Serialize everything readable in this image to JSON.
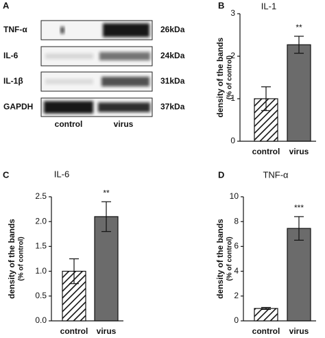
{
  "blot": {
    "panel": "A",
    "rows": [
      {
        "label": "TNF-α",
        "size": "26kDa"
      },
      {
        "label": "IL-6",
        "size": "24kDa"
      },
      {
        "label": "IL-1β",
        "size": "31kDa"
      },
      {
        "label": "GAPDH",
        "size": "37kDa"
      }
    ],
    "lanes": [
      "control",
      "virus"
    ]
  },
  "chart_data": [
    {
      "type": "bar",
      "panel": "B",
      "title": "IL-1",
      "ylabel": [
        "density of the bands",
        "(% of control)"
      ],
      "categories": [
        "control",
        "virus"
      ],
      "values": [
        1.0,
        2.27
      ],
      "errors": [
        0.28,
        0.2
      ],
      "annotations": [
        null,
        "**"
      ],
      "patterns": [
        "hatch",
        "solid"
      ],
      "color": "#6b6b6b",
      "ylim": [
        0,
        3
      ],
      "yticks": [
        0,
        1,
        2,
        3
      ]
    },
    {
      "type": "bar",
      "panel": "C",
      "title": "IL-6",
      "ylabel": [
        "density of the bands",
        "(% of control)"
      ],
      "categories": [
        "control",
        "virus"
      ],
      "values": [
        1.0,
        2.1
      ],
      "errors": [
        0.25,
        0.3
      ],
      "annotations": [
        null,
        "**"
      ],
      "patterns": [
        "hatch",
        "solid"
      ],
      "color": "#6b6b6b",
      "ylim": [
        0,
        2.5
      ],
      "yticks": [
        {
          "value": 0,
          "label": "0.0"
        },
        0.5,
        {
          "value": 1,
          "label": "1.0"
        },
        1.5,
        {
          "value": 2,
          "label": "2.0"
        },
        2.5
      ]
    },
    {
      "type": "bar",
      "panel": "D",
      "title": "TNF-α",
      "ylabel": [
        "density of the bands",
        "(% of control)"
      ],
      "categories": [
        "control",
        "virus"
      ],
      "values": [
        1.0,
        7.45
      ],
      "errors": [
        0.08,
        0.95
      ],
      "annotations": [
        null,
        "***"
      ],
      "patterns": [
        "hatch",
        "solid"
      ],
      "color": "#6b6b6b",
      "ylim": [
        0,
        10
      ],
      "yticks": [
        0,
        2,
        4,
        6,
        8,
        10
      ]
    }
  ]
}
